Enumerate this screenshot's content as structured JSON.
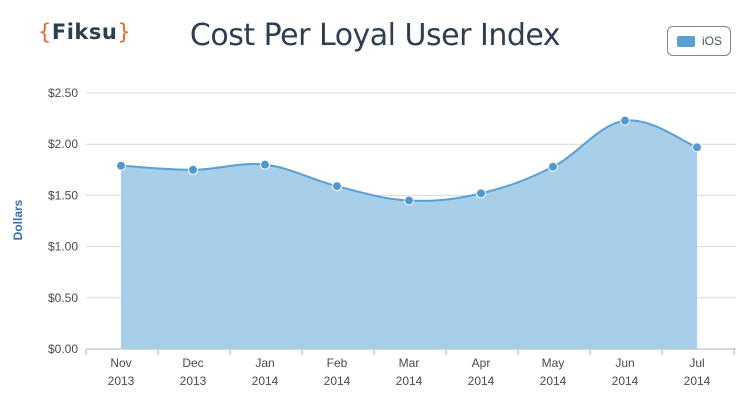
{
  "logo": {
    "open": "{",
    "text": "Fiksu",
    "close": "}"
  },
  "chart_data": {
    "type": "area",
    "title": "Cost Per Loyal User Index",
    "ylabel": "Dollars",
    "xlabel": "",
    "categories": [
      [
        "Nov",
        "2013"
      ],
      [
        "Dec",
        "2013"
      ],
      [
        "Jan",
        "2014"
      ],
      [
        "Feb",
        "2014"
      ],
      [
        "Mar",
        "2014"
      ],
      [
        "Apr",
        "2014"
      ],
      [
        "May",
        "2014"
      ],
      [
        "Jun",
        "2014"
      ],
      [
        "Jul",
        "2014"
      ]
    ],
    "series": [
      {
        "name": "iOS",
        "values": [
          1.79,
          1.75,
          1.8,
          1.59,
          1.45,
          1.52,
          1.78,
          2.23,
          1.97
        ]
      }
    ],
    "ylim": [
      0,
      2.5
    ],
    "yticks": [
      "$0.00",
      "$0.50",
      "$1.00",
      "$1.50",
      "$2.00",
      "$2.50"
    ],
    "ytick_values": [
      0,
      0.5,
      1.0,
      1.5,
      2.0,
      2.5
    ],
    "grid": true,
    "legend_position": "top-right",
    "colors": {
      "area": "#a8cfe9",
      "line": "#5aa0d4",
      "marker": "#4f98d0",
      "grid": "#d9d9d9",
      "axis": "#aab3bb"
    }
  }
}
